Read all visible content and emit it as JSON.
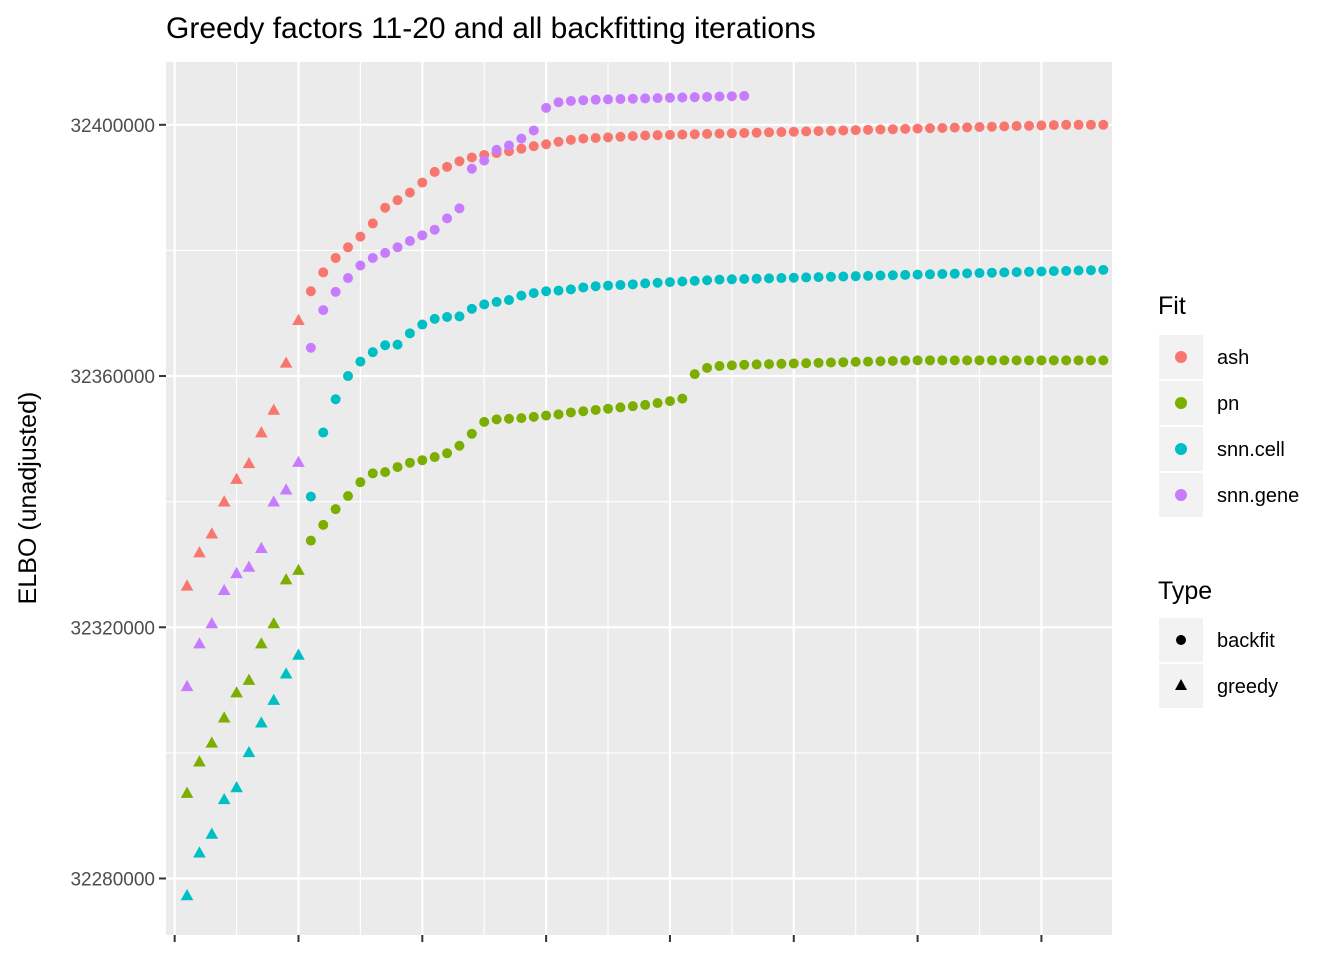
{
  "chart_data": {
    "type": "scatter",
    "title": "Greedy factors 11-20 and all backfitting iterations",
    "xlabel": "",
    "ylabel": "ELBO (unadjusted)",
    "xlim": [
      0.3,
      76.7
    ],
    "ylim": [
      32271000,
      32410000
    ],
    "y_ticks": [
      32280000,
      32320000,
      32360000,
      32400000
    ],
    "y_tick_labels": [
      "32280000",
      "32320000",
      "32360000",
      "32400000"
    ],
    "x_major_gridlines": [
      1,
      11,
      21,
      31,
      41,
      51,
      61,
      71
    ],
    "grid": true,
    "legend_placement": "right",
    "legends": [
      {
        "title": "Fit",
        "items": [
          "ash",
          "pn",
          "snn.cell",
          "snn.gene"
        ]
      },
      {
        "title": "Type",
        "items": [
          "backfit",
          "greedy"
        ]
      }
    ],
    "series": [
      {
        "name": "ash",
        "color": "#F8766D",
        "greedy": {
          "x": [
            2,
            3,
            4,
            5,
            6,
            7,
            8,
            9,
            10,
            11
          ],
          "y": [
            32326500,
            32331800,
            32334800,
            32339900,
            32343500,
            32346000,
            32350900,
            32354500,
            32362000,
            32368800
          ]
        },
        "backfit": {
          "x": [
            12,
            13,
            14,
            15,
            16,
            17,
            18,
            19,
            20,
            21,
            22,
            23,
            24,
            25,
            26,
            27,
            28,
            29,
            30,
            31,
            32,
            33,
            34,
            35,
            36,
            37,
            38,
            39,
            40,
            41,
            42,
            43,
            44,
            45,
            46,
            47,
            48,
            49,
            50,
            51,
            52,
            53,
            54,
            55,
            56,
            57,
            58,
            59,
            60,
            61,
            62,
            63,
            64,
            65,
            66,
            67,
            68,
            69,
            70,
            71,
            72,
            73,
            74,
            75,
            76
          ],
          "y": [
            32373500,
            32376500,
            32378800,
            32380500,
            32382200,
            32384300,
            32386800,
            32388000,
            32389200,
            32390800,
            32392500,
            32393300,
            32394200,
            32394800,
            32395200,
            32395500,
            32395800,
            32396200,
            32396600,
            32396900,
            32397300,
            32397600,
            32397800,
            32397900,
            32398000,
            32398100,
            32398200,
            32398300,
            32398350,
            32398400,
            32398450,
            32398500,
            32398550,
            32398600,
            32398650,
            32398700,
            32398750,
            32398800,
            32398850,
            32398900,
            32398950,
            32399000,
            32399050,
            32399100,
            32399150,
            32399200,
            32399250,
            32399300,
            32399350,
            32399400,
            32399450,
            32399500,
            32399550,
            32399600,
            32399650,
            32399700,
            32399750,
            32399800,
            32399850,
            32399900,
            32399950,
            32400000,
            32400000,
            32400000,
            32400000
          ]
        }
      },
      {
        "name": "pn",
        "color": "#7CAE00",
        "greedy": {
          "x": [
            2,
            3,
            4,
            5,
            6,
            7,
            8,
            9,
            10,
            11
          ],
          "y": [
            32293500,
            32298500,
            32301500,
            32305500,
            32309500,
            32311500,
            32317300,
            32320500,
            32327500,
            32329000
          ]
        },
        "backfit": {
          "x": [
            12,
            13,
            14,
            15,
            16,
            17,
            18,
            19,
            20,
            21,
            22,
            23,
            24,
            25,
            26,
            27,
            28,
            29,
            30,
            31,
            32,
            33,
            34,
            35,
            36,
            37,
            38,
            39,
            40,
            41,
            42,
            43,
            44,
            45,
            46,
            47,
            48,
            49,
            50,
            51,
            52,
            53,
            54,
            55,
            56,
            57,
            58,
            59,
            60,
            61,
            62,
            63,
            64,
            65,
            66,
            67,
            68,
            69,
            70,
            71,
            72,
            73,
            74,
            75,
            76
          ],
          "y": [
            32333800,
            32336300,
            32338800,
            32340900,
            32343100,
            32344500,
            32344700,
            32345500,
            32346200,
            32346600,
            32347100,
            32347700,
            32348900,
            32350800,
            32352700,
            32353100,
            32353200,
            32353300,
            32353500,
            32353700,
            32353900,
            32354200,
            32354400,
            32354600,
            32354800,
            32355000,
            32355200,
            32355400,
            32355700,
            32356000,
            32356400,
            32360300,
            32361300,
            32361600,
            32361700,
            32361800,
            32361850,
            32361900,
            32361950,
            32362000,
            32362050,
            32362100,
            32362150,
            32362200,
            32362250,
            32362300,
            32362350,
            32362400,
            32362450,
            32362500,
            32362500,
            32362500,
            32362500,
            32362500,
            32362500,
            32362500,
            32362500,
            32362500,
            32362500,
            32362500,
            32362500,
            32362500,
            32362500,
            32362500,
            32362500
          ]
        }
      },
      {
        "name": "snn.cell",
        "color": "#00BFC4",
        "greedy": {
          "x": [
            2,
            3,
            4,
            5,
            6,
            7,
            8,
            9,
            10,
            11
          ],
          "y": [
            32277200,
            32284000,
            32287000,
            32292500,
            32294400,
            32300000,
            32304700,
            32308300,
            32312500,
            32315500
          ]
        },
        "backfit": {
          "x": [
            12,
            13,
            14,
            15,
            16,
            17,
            18,
            19,
            20,
            21,
            22,
            23,
            24,
            25,
            26,
            27,
            28,
            29,
            30,
            31,
            32,
            33,
            34,
            35,
            36,
            37,
            38,
            39,
            40,
            41,
            42,
            43,
            44,
            45,
            46,
            47,
            48,
            49,
            50,
            51,
            52,
            53,
            54,
            55,
            56,
            57,
            58,
            59,
            60,
            61,
            62,
            63,
            64,
            65,
            66,
            67,
            68,
            69,
            70,
            71,
            72,
            73,
            74,
            75,
            76
          ],
          "y": [
            32340800,
            32351000,
            32356300,
            32360000,
            32362300,
            32363800,
            32364900,
            32365000,
            32366800,
            32368200,
            32369100,
            32369400,
            32369500,
            32370700,
            32371400,
            32371800,
            32372100,
            32372800,
            32373200,
            32373500,
            32373600,
            32373800,
            32374100,
            32374300,
            32374400,
            32374500,
            32374600,
            32374750,
            32374850,
            32374950,
            32375050,
            32375150,
            32375250,
            32375350,
            32375400,
            32375450,
            32375500,
            32375550,
            32375600,
            32375650,
            32375700,
            32375750,
            32375800,
            32375850,
            32375900,
            32375950,
            32376000,
            32376050,
            32376100,
            32376150,
            32376200,
            32376250,
            32376300,
            32376350,
            32376400,
            32376450,
            32376500,
            32376550,
            32376600,
            32376650,
            32376700,
            32376750,
            32376800,
            32376850,
            32376900
          ]
        }
      },
      {
        "name": "snn.gene",
        "color": "#C77CFF",
        "greedy": {
          "x": [
            2,
            3,
            4,
            5,
            6,
            7,
            8,
            9,
            10,
            11
          ],
          "y": [
            32310500,
            32317300,
            32320500,
            32325800,
            32328500,
            32329500,
            32332500,
            32339900,
            32341800,
            32346200
          ]
        },
        "backfit": {
          "x": [
            12,
            13,
            14,
            15,
            16,
            17,
            18,
            19,
            20,
            21,
            22,
            23,
            24,
            25,
            26,
            27,
            28,
            29,
            30,
            31,
            32,
            33,
            34,
            35,
            36,
            37,
            38,
            39,
            40,
            41,
            42,
            43,
            44,
            45,
            46,
            47
          ],
          "y": [
            32364500,
            32370500,
            32373400,
            32375600,
            32377600,
            32378800,
            32379600,
            32380500,
            32381500,
            32382400,
            32383300,
            32385100,
            32386700,
            32393000,
            32394300,
            32396000,
            32396700,
            32397800,
            32399100,
            32402700,
            32403600,
            32403800,
            32403900,
            32404000,
            32404050,
            32404100,
            32404150,
            32404200,
            32404250,
            32404300,
            32404350,
            32404400,
            32404450,
            32404500,
            32404550,
            32404600
          ]
        }
      }
    ]
  }
}
